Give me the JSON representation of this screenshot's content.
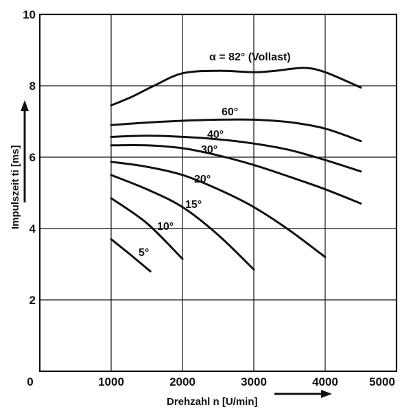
{
  "chart_data": {
    "type": "line",
    "xlabel": "Drehzahl n [U/min]",
    "ylabel": "Impulszeit ti [ms]",
    "xlim": [
      0,
      5000
    ],
    "ylim": [
      0,
      10
    ],
    "x_ticks": [
      "0",
      "1000",
      "2000",
      "3000",
      "4000",
      "5000"
    ],
    "y_ticks": [
      "2",
      "4",
      "6",
      "8",
      "10"
    ],
    "grid": true,
    "series": [
      {
        "name": "α = 82° (Vollast)",
        "x": [
          1000,
          1300,
          1600,
          2000,
          2500,
          3000,
          3300,
          3700,
          4000,
          4500
        ],
        "y": [
          7.45,
          7.7,
          8.0,
          8.35,
          8.42,
          8.38,
          8.42,
          8.5,
          8.38,
          7.95
        ]
      },
      {
        "name": "60°",
        "x": [
          1000,
          1500,
          2000,
          2500,
          3000,
          3500,
          4000,
          4500
        ],
        "y": [
          6.9,
          6.97,
          7.02,
          7.05,
          7.05,
          6.98,
          6.8,
          6.45
        ]
      },
      {
        "name": "40°",
        "x": [
          1000,
          1500,
          2000,
          2500,
          3000,
          3500,
          4000,
          4500
        ],
        "y": [
          6.57,
          6.6,
          6.57,
          6.5,
          6.38,
          6.2,
          5.92,
          5.6
        ]
      },
      {
        "name": "30°",
        "x": [
          1000,
          1500,
          2000,
          2500,
          3000,
          3500,
          4000,
          4500
        ],
        "y": [
          6.33,
          6.33,
          6.25,
          6.05,
          5.78,
          5.45,
          5.1,
          4.7
        ]
      },
      {
        "name": "20°",
        "x": [
          1000,
          1500,
          2000,
          2500,
          3000,
          3500,
          4000
        ],
        "y": [
          5.87,
          5.73,
          5.5,
          5.1,
          4.6,
          3.95,
          3.2
        ]
      },
      {
        "name": "15°",
        "x": [
          1000,
          1500,
          2000,
          2500,
          3000
        ],
        "y": [
          5.5,
          5.1,
          4.6,
          3.82,
          2.85
        ]
      },
      {
        "name": "10°",
        "x": [
          1000,
          1500,
          2000
        ],
        "y": [
          4.85,
          4.15,
          3.15
        ]
      },
      {
        "name": "5°",
        "x": [
          1000,
          1250,
          1550
        ],
        "y": [
          3.7,
          3.3,
          2.8
        ]
      }
    ]
  }
}
